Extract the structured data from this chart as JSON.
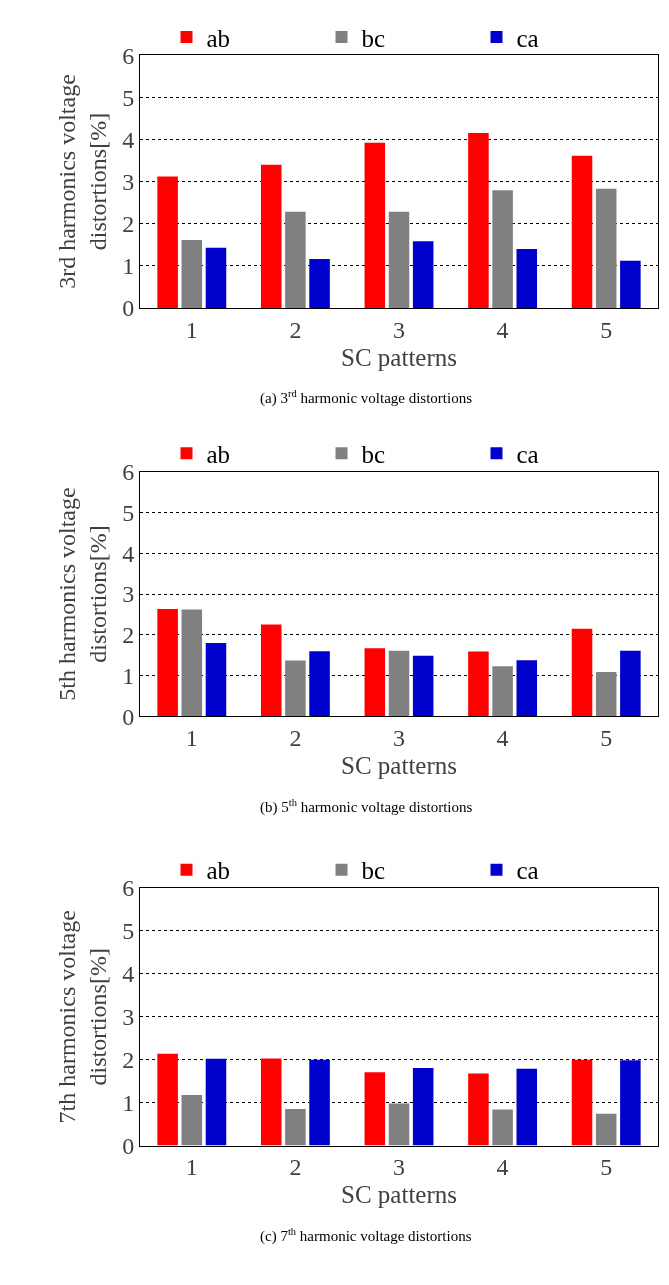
{
  "chart_data": [
    {
      "type": "bar",
      "title": "(a) 3$^{rd}$ harmonic voltage distortions",
      "xlabel": "SC patterns",
      "ylabel": "3rd harmonics voltage distortions[%]",
      "categories": [
        "1",
        "2",
        "3",
        "4",
        "5"
      ],
      "series": [
        {
          "name": "ab",
          "color": "#ff0000",
          "values": [
            3.12,
            3.4,
            3.92,
            4.15,
            3.61
          ]
        },
        {
          "name": "bc",
          "color": "#808080",
          "values": [
            1.61,
            2.28,
            2.28,
            2.79,
            2.83
          ]
        },
        {
          "name": "ca",
          "color": "#0000cc",
          "values": [
            1.43,
            1.16,
            1.58,
            1.4,
            1.12
          ]
        }
      ],
      "ylim": [
        0,
        6
      ],
      "yticks": [
        0,
        1,
        2,
        3,
        4,
        5,
        6
      ],
      "grid": "y",
      "legend": "top"
    },
    {
      "type": "bar",
      "title": "(b) 5$^{th}$ harmonic voltage distortions",
      "xlabel": "SC patterns",
      "ylabel": "5th harmonics voltage distortions[%]",
      "categories": [
        "1",
        "2",
        "3",
        "4",
        "5"
      ],
      "series": [
        {
          "name": "ab",
          "color": "#ff0000",
          "values": [
            2.63,
            2.25,
            1.67,
            1.59,
            2.15
          ]
        },
        {
          "name": "bc",
          "color": "#808080",
          "values": [
            2.62,
            1.37,
            1.61,
            1.23,
            1.09
          ]
        },
        {
          "name": "ca",
          "color": "#0000cc",
          "values": [
            1.8,
            1.6,
            1.49,
            1.38,
            1.61
          ]
        }
      ],
      "ylim": [
        0,
        6
      ],
      "yticks": [
        0,
        1,
        2,
        3,
        4,
        5,
        6
      ],
      "grid": "y",
      "legend": "top"
    },
    {
      "type": "bar",
      "title": "(c) 7$^{th}$ harmonic voltage distortions",
      "xlabel": "SC patterns",
      "ylabel": "7th harmonics voltage distortions[%]",
      "categories": [
        "1",
        "2",
        "3",
        "4",
        "5"
      ],
      "series": [
        {
          "name": "ab",
          "color": "#ff0000",
          "values": [
            2.14,
            2.03,
            1.71,
            1.68,
            2.0
          ]
        },
        {
          "name": "bc",
          "color": "#808080",
          "values": [
            1.18,
            0.85,
            0.98,
            0.84,
            0.74
          ]
        },
        {
          "name": "ca",
          "color": "#0000cc",
          "values": [
            2.02,
            2.0,
            1.81,
            1.79,
            1.99
          ]
        }
      ],
      "ylim": [
        0,
        6
      ],
      "yticks": [
        0,
        1,
        2,
        3,
        4,
        5,
        6
      ],
      "grid": "y",
      "legend": "top"
    }
  ]
}
